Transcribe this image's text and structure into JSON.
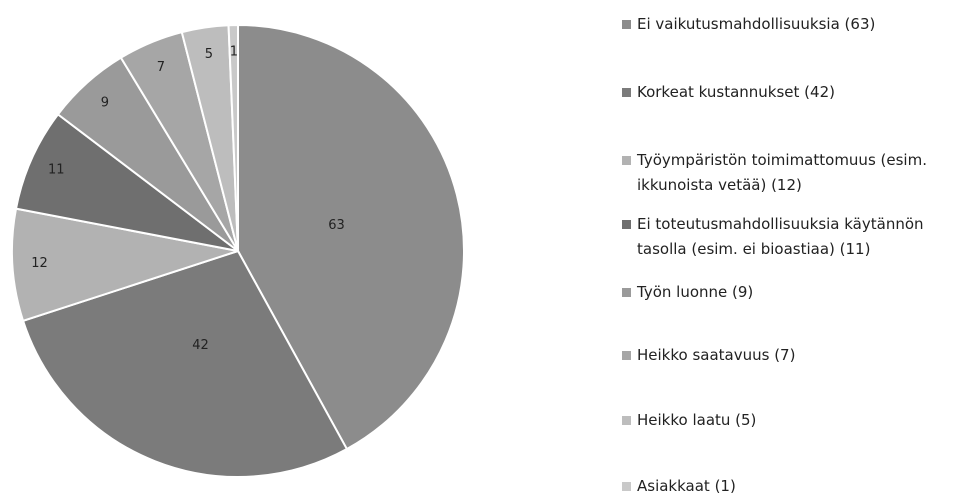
{
  "chart_data": {
    "type": "pie",
    "categories": [
      "Ei vaikutusmahdollisuuksia (63)",
      "Korkeat kustannukset (42)",
      "Työympäristön toimimattomuus (esim. ikkunoista vetää) (12)",
      "Ei toteutusmahdollisuuksia käytännön tasolla (esim. ei bioastiaa) (11)",
      "Työn luonne (9)",
      "Heikko saatavuus (7)",
      "Heikko laatu (5)",
      "Asiakkaat (1)"
    ],
    "values": [
      63,
      42,
      12,
      11,
      9,
      7,
      5,
      1
    ],
    "colors": [
      "#8c8c8c",
      "#7b7b7b",
      "#b2b2b2",
      "#6f6f6f",
      "#9a9a9a",
      "#a6a6a6",
      "#bdbdbd",
      "#c9c9c9"
    ]
  }
}
